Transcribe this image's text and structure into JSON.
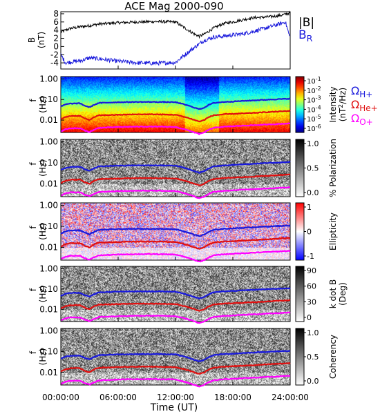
{
  "title": "ACE Mag 2000-090",
  "colors": {
    "mag_total": "#000000",
    "mag_radial": "#1a1adc",
    "h_plus": "#1a1adc",
    "he_plus": "#e01010",
    "o_plus": "#ff00ff"
  },
  "chart_data": [
    {
      "type": "line",
      "ylabel": "B\n(nT)",
      "ylim": [
        -5.5,
        8.5
      ],
      "y_ticks": [
        "-4",
        "-2",
        "0",
        "2",
        "4",
        "6",
        "8"
      ],
      "x_ticks": [
        "00:00:00",
        "06:00:00",
        "12:00:00",
        "18:00:00",
        "24:00:00"
      ],
      "legend": [
        "|B|",
        "B_R"
      ],
      "series": [
        {
          "name": "|B|",
          "x_hours": [
            0,
            0.5,
            1,
            2,
            3,
            4,
            6,
            8,
            10,
            12,
            13,
            14,
            14.5,
            15,
            16,
            17,
            18,
            19,
            20,
            22,
            23,
            23.5,
            24
          ],
          "values": [
            3.5,
            4.0,
            4.4,
            4.8,
            5.1,
            5.5,
            5.8,
            6.0,
            6.1,
            6.0,
            4.5,
            3.0,
            2.5,
            3.0,
            4.5,
            5.6,
            6.0,
            6.5,
            7.0,
            7.3,
            7.6,
            7.9,
            8.2
          ]
        },
        {
          "name": "B_R",
          "x_hours": [
            0,
            0.5,
            1,
            2,
            3,
            4,
            6,
            8,
            10,
            12,
            13,
            14,
            15,
            16,
            17,
            18,
            19,
            20,
            21,
            22,
            23,
            23.5,
            24
          ],
          "values": [
            -2.0,
            -4.0,
            -3.8,
            -3.5,
            -2.8,
            -3.0,
            -3.6,
            -4.0,
            -4.1,
            -3.9,
            -2.0,
            -0.2,
            1.5,
            2.3,
            2.5,
            2.8,
            3.1,
            3.6,
            4.2,
            4.9,
            5.6,
            6.0,
            2.0
          ]
        }
      ]
    },
    {
      "type": "heatmap",
      "name": "Intensity",
      "ylabel": "f\n(Hz)",
      "y_ticks": [
        "1.00",
        "0.10",
        "0.01"
      ],
      "colorbar_label": "Intensity\n(nT^2/Hz)",
      "colorbar_ticks": [
        "10^-1",
        "10^-2",
        "10^-3",
        "10^-4",
        "10^-5",
        "10^-6"
      ],
      "overlay_legend": [
        "Ω_H+",
        "Ω_He+",
        "Ω_O+"
      ]
    },
    {
      "type": "heatmap",
      "name": "% Polarization",
      "ylabel": "f\n(Hz)",
      "y_ticks": [
        "1.00",
        "0.10",
        "0.01"
      ],
      "colorbar_label": "% Polarization",
      "colorbar_ticks": [
        "1.0",
        "0.5",
        "0.0"
      ]
    },
    {
      "type": "heatmap",
      "name": "Ellipticity",
      "ylabel": "f\n(Hz)",
      "y_ticks": [
        "1.00",
        "0.10",
        "0.01"
      ],
      "colorbar_label": "Ellipticity",
      "colorbar_ticks": [
        "1",
        "0",
        "-1"
      ]
    },
    {
      "type": "heatmap",
      "name": "k dot B",
      "ylabel": "f\n(Hz)",
      "y_ticks": [
        "1.00",
        "0.10",
        "0.01"
      ],
      "colorbar_label": "k dot B\n(Deg)",
      "colorbar_ticks": [
        "90",
        "60",
        "30",
        "0"
      ]
    },
    {
      "type": "heatmap",
      "name": "Coherency",
      "ylabel": "f\n(Hz)",
      "y_ticks": [
        "1.00",
        "0.10",
        "0.01"
      ],
      "colorbar_label": "Coherency",
      "colorbar_ticks": [
        "1.0",
        "0.5",
        "0.0"
      ]
    }
  ],
  "gyrofrequency_hz": {
    "x_hours": [
      0,
      0.5,
      1,
      2,
      2.5,
      3,
      3.5,
      4,
      6,
      8,
      10,
      12,
      13,
      14,
      14.5,
      15,
      15.5,
      16,
      17,
      18,
      19,
      20,
      22,
      24
    ],
    "h_plus": [
      0.045,
      0.058,
      0.063,
      0.065,
      0.05,
      0.042,
      0.055,
      0.068,
      0.074,
      0.076,
      0.076,
      0.074,
      0.056,
      0.04,
      0.034,
      0.04,
      0.055,
      0.068,
      0.076,
      0.08,
      0.085,
      0.09,
      0.1,
      0.11
    ],
    "he_plus": [
      0.011,
      0.014,
      0.016,
      0.016,
      0.012,
      0.01,
      0.014,
      0.017,
      0.018,
      0.019,
      0.019,
      0.018,
      0.014,
      0.01,
      0.0085,
      0.01,
      0.014,
      0.017,
      0.019,
      0.02,
      0.021,
      0.022,
      0.025,
      0.028
    ],
    "o_plus": [
      0.0028,
      0.0036,
      0.004,
      0.004,
      0.0031,
      0.0026,
      0.0034,
      0.0042,
      0.0046,
      0.0048,
      0.0048,
      0.0046,
      0.0035,
      0.0025,
      0.0021,
      0.0025,
      0.0034,
      0.0042,
      0.0047,
      0.005,
      0.0053,
      0.0056,
      0.0062,
      0.0069
    ]
  },
  "xlabel": "Time (UT)",
  "x_ticks": [
    "00:00:00",
    "06:00:00",
    "12:00:00",
    "18:00:00",
    "24:00:00"
  ]
}
